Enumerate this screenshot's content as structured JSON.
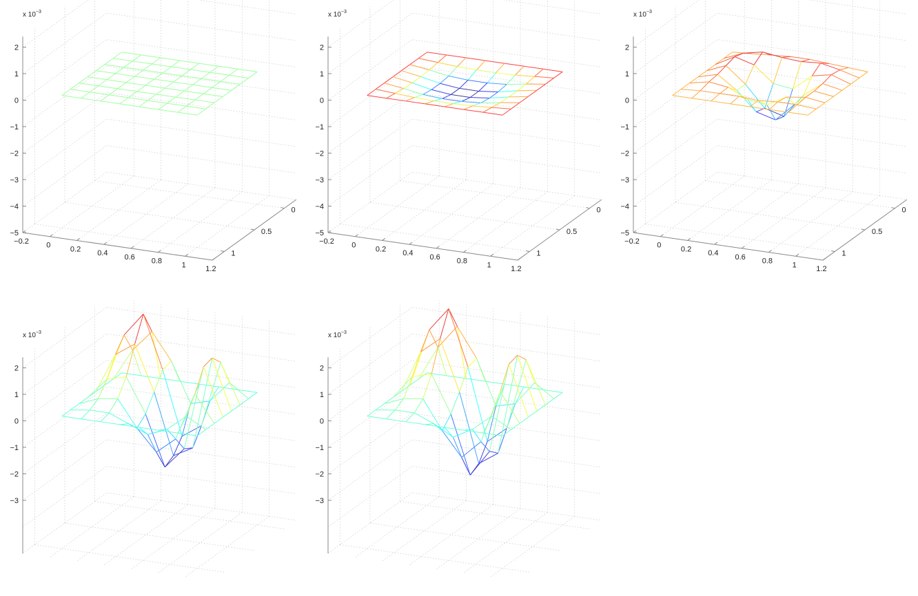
{
  "figure": {
    "layout": "2 rows x 3 columns, 5 panels (bottom-right empty)",
    "colormap": "jet",
    "background": "#ffffff"
  },
  "chart_data": [
    {
      "id": "panel-1",
      "type": "surface-mesh",
      "title": "",
      "z_exponent_label": "x 10",
      "z_exponent_power": "-3",
      "xlabel": "",
      "ylabel": "",
      "zlabel": "",
      "x_ticks": [
        "-0.2",
        "0",
        "0.2",
        "0.4",
        "0.6",
        "0.8",
        "1",
        "1.2"
      ],
      "y_ticks": [
        "0",
        "0.5",
        "1"
      ],
      "z_ticks": [
        "2",
        "1",
        "0",
        "-1",
        "-2",
        "-3",
        "-4",
        "-5"
      ],
      "xlim": [
        -0.2,
        1.2
      ],
      "ylim": [
        -0.2,
        1.2
      ],
      "zlim": [
        -5,
        2.4
      ],
      "grid": true,
      "grid_nodes": [
        0,
        0.1429,
        0.2857,
        0.4286,
        0.5714,
        0.7143,
        0.8571,
        1
      ],
      "z_description": "flat plane, z ≈ 0 everywhere",
      "z": [
        [
          0,
          0,
          0,
          0,
          0,
          0,
          0,
          0
        ],
        [
          0,
          0,
          0,
          0,
          0,
          0,
          0,
          0
        ],
        [
          0,
          0,
          0,
          0,
          0,
          0,
          0,
          0
        ],
        [
          0,
          0,
          0,
          0,
          0,
          0,
          0,
          0
        ],
        [
          0,
          0,
          0,
          0,
          0,
          0,
          0,
          0
        ],
        [
          0,
          0,
          0,
          0,
          0,
          0,
          0,
          0
        ],
        [
          0,
          0,
          0,
          0,
          0,
          0,
          0,
          0
        ],
        [
          0,
          0,
          0,
          0,
          0,
          0,
          0,
          0
        ]
      ],
      "color_scale": [
        -5e-05,
        5e-05
      ]
    },
    {
      "id": "panel-2",
      "type": "surface-mesh",
      "title": "",
      "z_exponent_label": "x 10",
      "z_exponent_power": "-3",
      "x_ticks": [
        "-0.2",
        "0",
        "0.2",
        "0.4",
        "0.6",
        "0.8",
        "1",
        "1.2"
      ],
      "y_ticks": [
        "0",
        "0.5",
        "1"
      ],
      "z_ticks": [
        "2",
        "1",
        "0",
        "-1",
        "-2",
        "-3",
        "-4",
        "-5"
      ],
      "xlim": [
        -0.2,
        1.2
      ],
      "ylim": [
        -0.2,
        1.2
      ],
      "zlim": [
        -5,
        2.4
      ],
      "grid": true,
      "grid_nodes": [
        0,
        0.1429,
        0.2857,
        0.4286,
        0.5714,
        0.7143,
        0.8571,
        1
      ],
      "z_description": "shallow central depression, minimum ≈ -0.35e-3",
      "z": [
        [
          0,
          0,
          0,
          0,
          0,
          0,
          0,
          0
        ],
        [
          0,
          -0.05,
          -0.1,
          -0.12,
          -0.12,
          -0.1,
          -0.05,
          0
        ],
        [
          0,
          -0.1,
          -0.22,
          -0.27,
          -0.27,
          -0.22,
          -0.1,
          0
        ],
        [
          0,
          -0.12,
          -0.27,
          -0.35,
          -0.35,
          -0.27,
          -0.12,
          0
        ],
        [
          0,
          -0.12,
          -0.27,
          -0.35,
          -0.35,
          -0.27,
          -0.12,
          0
        ],
        [
          0,
          -0.1,
          -0.22,
          -0.27,
          -0.27,
          -0.22,
          -0.1,
          0
        ],
        [
          0,
          -0.05,
          -0.1,
          -0.12,
          -0.12,
          -0.1,
          -0.05,
          0
        ],
        [
          0,
          0,
          0,
          0,
          0,
          0,
          0,
          0
        ]
      ],
      "color_scale": [
        -0.35,
        0.05
      ]
    },
    {
      "id": "panel-3",
      "type": "surface-mesh",
      "title": "",
      "z_exponent_label": "x 10",
      "z_exponent_power": "-3",
      "x_ticks": [
        "-0.2",
        "0",
        "0.2",
        "0.4",
        "0.6",
        "0.8",
        "1",
        "1.2"
      ],
      "y_ticks": [
        "0",
        "0.5",
        "1"
      ],
      "z_ticks": [
        "2",
        "1",
        "0",
        "-1",
        "-2",
        "-3",
        "-4",
        "-5"
      ],
      "xlim": [
        -0.2,
        1.2
      ],
      "ylim": [
        -0.2,
        1.2
      ],
      "zlim": [
        -5,
        2.4
      ],
      "grid": true,
      "grid_nodes": [
        0,
        0.1429,
        0.2857,
        0.4286,
        0.5714,
        0.7143,
        0.8571,
        1
      ],
      "z_description": "raised rim with central pit, minimum ≈ -1.3e-3, rim ≈ +0.5e-3",
      "z": [
        [
          0,
          0.05,
          0.1,
          0.15,
          0.15,
          0.1,
          0.05,
          0
        ],
        [
          0,
          0.3,
          0.45,
          0.35,
          0.3,
          0.35,
          0.2,
          0
        ],
        [
          0,
          0.4,
          0.2,
          -0.4,
          -0.5,
          0.1,
          0.25,
          0
        ],
        [
          0,
          0.3,
          -0.3,
          -1.1,
          -1.3,
          -0.4,
          0.15,
          0
        ],
        [
          0,
          0.2,
          -0.3,
          -1.0,
          -1.2,
          -0.5,
          0.1,
          0
        ],
        [
          0,
          0.15,
          0.05,
          -0.3,
          -0.4,
          0.0,
          0.1,
          0
        ],
        [
          0,
          0.05,
          0.05,
          0.05,
          0.0,
          0.05,
          0.05,
          0
        ],
        [
          0,
          0,
          0,
          0,
          0,
          0,
          0,
          0
        ]
      ],
      "color_scale": [
        -1.3,
        0.5
      ]
    },
    {
      "id": "panel-4",
      "type": "surface-mesh",
      "title": "",
      "z_exponent_label": "x 10",
      "z_exponent_power": "-3",
      "z_ticks": [
        "2",
        "1",
        "0",
        "-1",
        "-2",
        "-3"
      ],
      "zlim": [
        -5,
        2.4
      ],
      "grid": true,
      "grid_nodes": [
        0,
        0.1429,
        0.2857,
        0.4286,
        0.5714,
        0.7143,
        0.8571,
        1
      ],
      "z_description": "large-amplitude wave, peaks ≈ +3e-3, trough ≈ -2.2e-3",
      "z": [
        [
          0,
          0,
          0,
          0,
          0,
          0,
          0,
          0
        ],
        [
          0,
          1.2,
          2.0,
          1.0,
          -0.5,
          -0.3,
          0.5,
          0
        ],
        [
          0,
          2.0,
          2.9,
          0.9,
          -1.5,
          -1.0,
          1.5,
          0
        ],
        [
          0,
          1.5,
          2.0,
          0.3,
          -2.0,
          -1.6,
          1.9,
          0
        ],
        [
          0,
          0.8,
          1.0,
          -0.3,
          -2.2,
          -1.4,
          1.8,
          0
        ],
        [
          0,
          0.3,
          0.4,
          -0.6,
          -1.4,
          -0.8,
          1.0,
          0
        ],
        [
          0,
          0.1,
          0.1,
          -0.2,
          -0.5,
          -0.2,
          0.4,
          0
        ],
        [
          0,
          0,
          0,
          0,
          0,
          0,
          0,
          0
        ]
      ],
      "color_scale": [
        -2.2,
        3.0
      ]
    },
    {
      "id": "panel-5",
      "type": "surface-mesh",
      "title": "",
      "z_exponent_label": "x 10",
      "z_exponent_power": "-3",
      "z_ticks": [
        "2",
        "1",
        "0",
        "-1",
        "-2",
        "-3"
      ],
      "zlim": [
        -5,
        2.4
      ],
      "grid": true,
      "grid_nodes": [
        0,
        0.1429,
        0.2857,
        0.4286,
        0.5714,
        0.7143,
        0.8571,
        1
      ],
      "z_description": "large-amplitude wave, peaks ≈ +3.2e-3, trough ≈ -2.5e-3",
      "z": [
        [
          0,
          0,
          0,
          0,
          0,
          0,
          0,
          0
        ],
        [
          0,
          1.3,
          2.2,
          1.1,
          -0.6,
          -0.4,
          0.5,
          0
        ],
        [
          0,
          2.2,
          3.1,
          1.0,
          -1.7,
          -1.1,
          1.6,
          0
        ],
        [
          0,
          1.6,
          2.2,
          0.3,
          -2.3,
          -1.8,
          2.0,
          0
        ],
        [
          0,
          0.9,
          1.1,
          -0.3,
          -2.5,
          -1.5,
          1.9,
          0
        ],
        [
          0,
          0.3,
          0.4,
          -0.7,
          -1.6,
          -0.9,
          1.1,
          0
        ],
        [
          0,
          0.1,
          0.1,
          -0.2,
          -0.6,
          -0.2,
          0.4,
          0
        ],
        [
          0,
          0,
          0,
          0,
          0,
          0,
          0,
          0
        ]
      ],
      "color_scale": [
        -2.5,
        3.2
      ]
    }
  ]
}
